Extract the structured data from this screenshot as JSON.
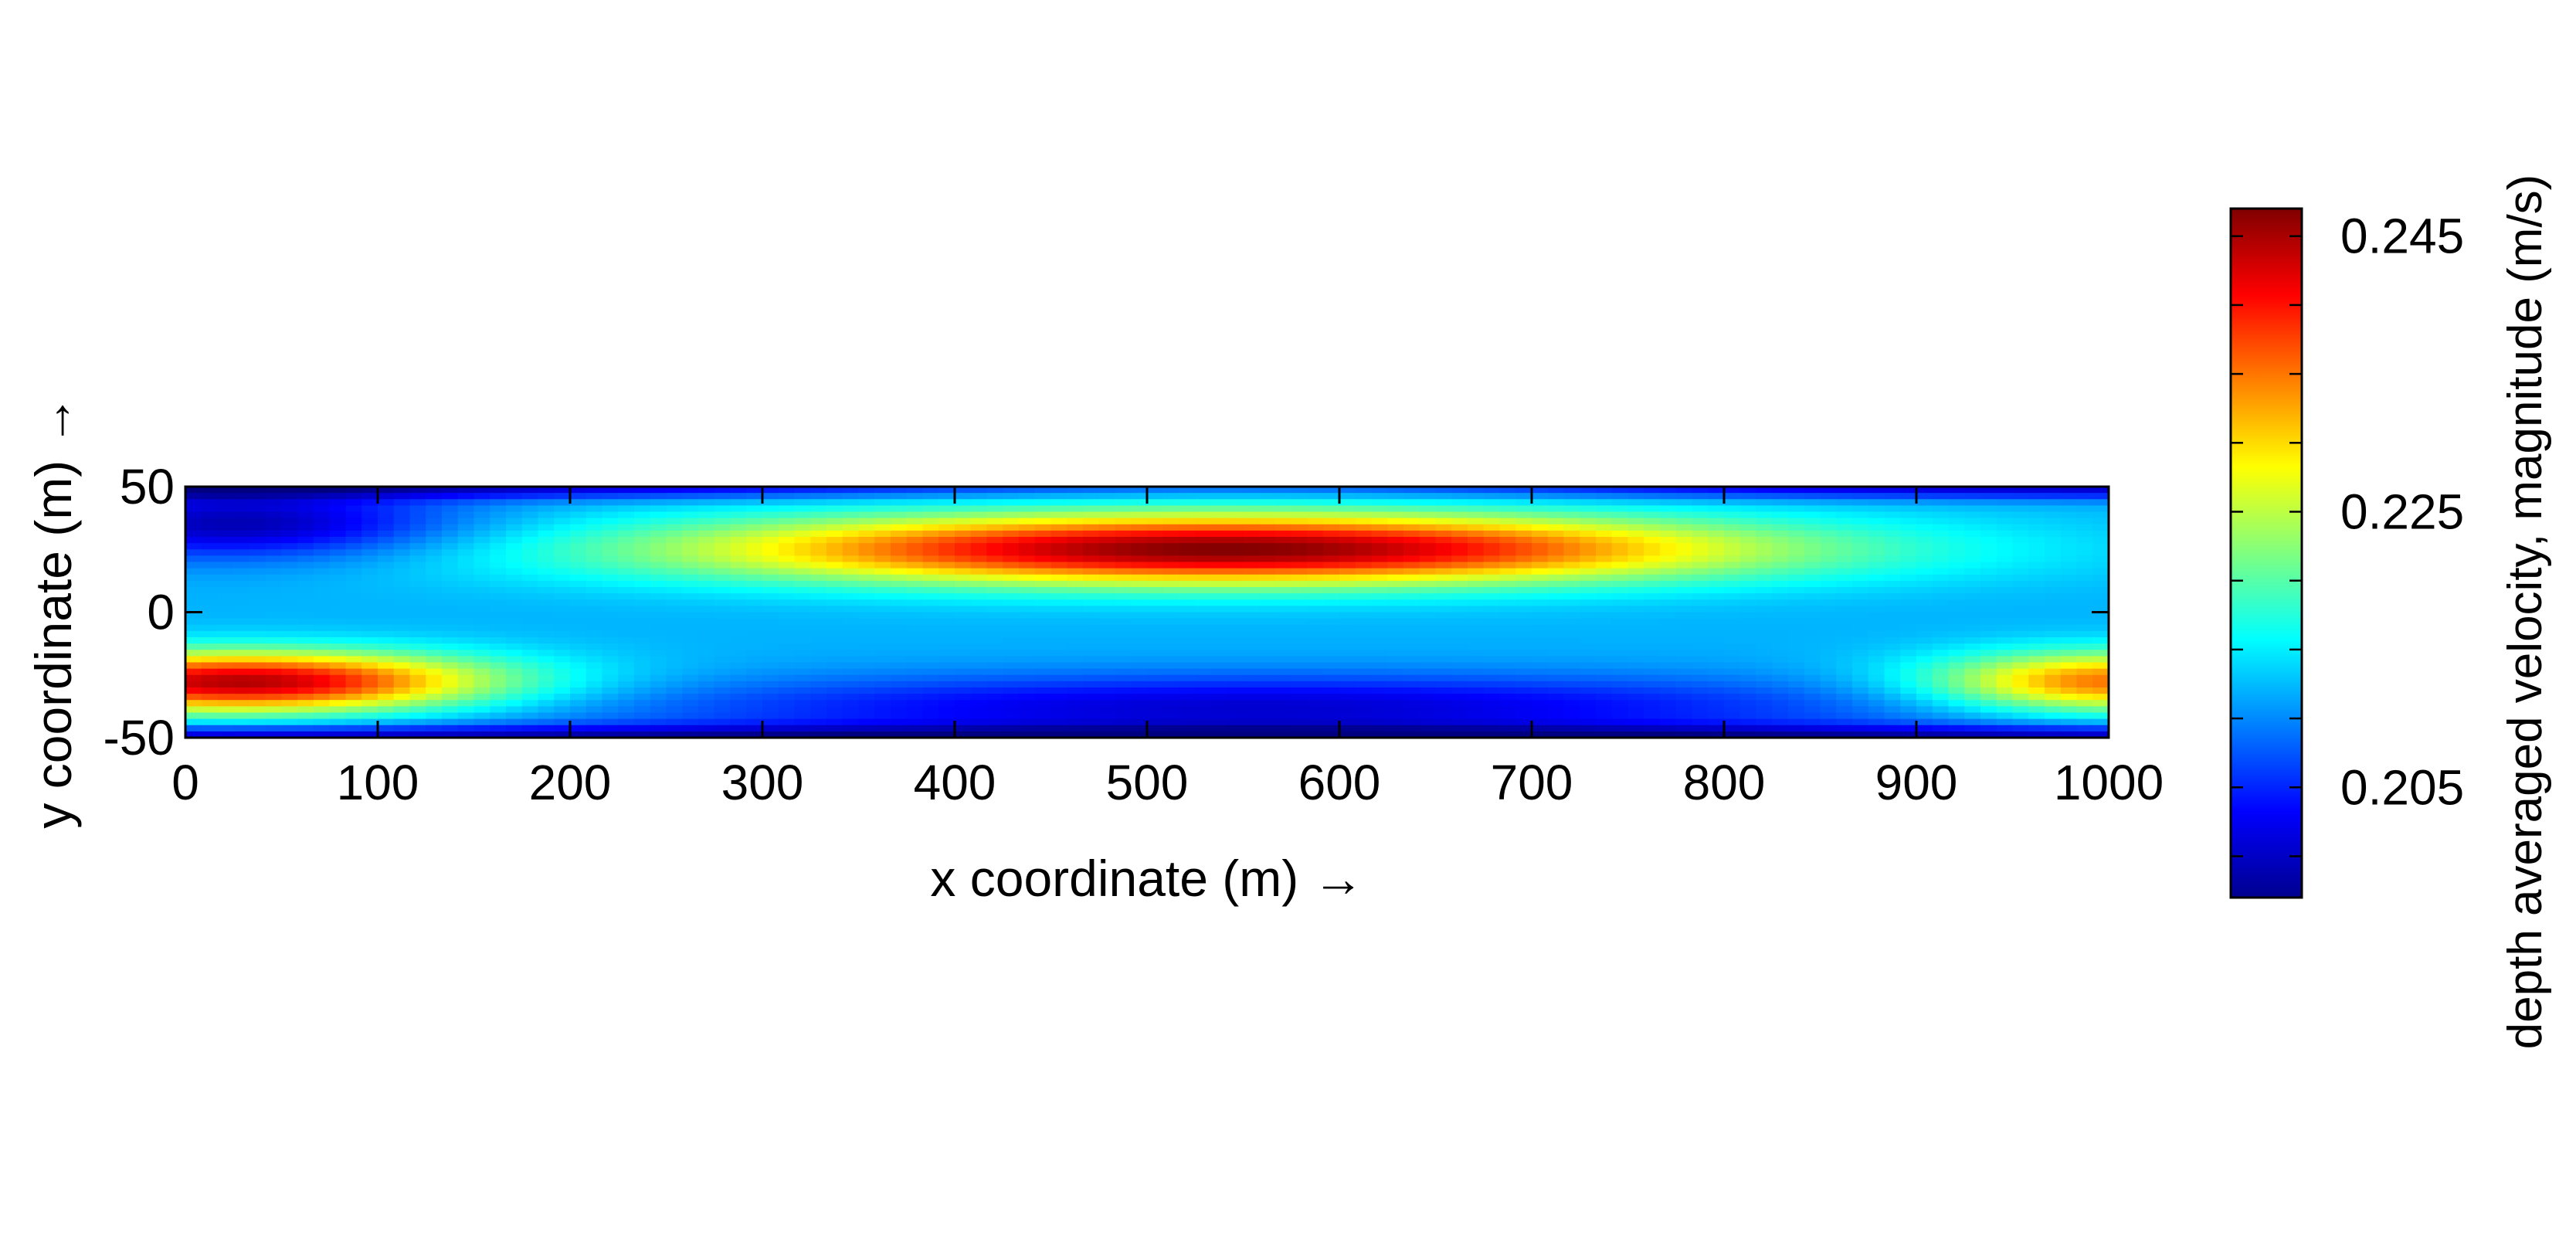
{
  "chart_data": {
    "type": "heatmap",
    "title": "",
    "xlabel": "x coordinate (m) →",
    "ylabel": "y coordinate (m) →",
    "xlim": [
      0,
      1000
    ],
    "ylim": [
      -50,
      50
    ],
    "x_ticks": [
      0,
      100,
      200,
      300,
      400,
      500,
      600,
      700,
      800,
      900,
      1000
    ],
    "y_ticks": [
      -50,
      0,
      50
    ],
    "grid": false,
    "colormap": "jet",
    "colorbar": {
      "label": "depth averaged velocity, magnitude (m/s)",
      "range": [
        0.197,
        0.247
      ],
      "ticks": [
        0.205,
        0.225,
        0.245
      ],
      "tick_labels": [
        "0.205",
        "0.225",
        "0.245"
      ],
      "position": "right"
    },
    "field": {
      "description_of_levels": "velocity magnitude",
      "features": [
        {
          "kind": "high",
          "x_center": 540,
          "y_center": 25,
          "value": 0.247
        },
        {
          "kind": "high",
          "x_center": 30,
          "y_center": -28,
          "value": 0.245
        },
        {
          "kind": "high",
          "x_center": 1000,
          "y_center": -28,
          "value": 0.236
        },
        {
          "kind": "low",
          "x_center": 30,
          "y_center": 35,
          "value": 0.199
        },
        {
          "kind": "low",
          "x_center": 560,
          "y_center": -38,
          "value": 0.201
        }
      ]
    }
  }
}
